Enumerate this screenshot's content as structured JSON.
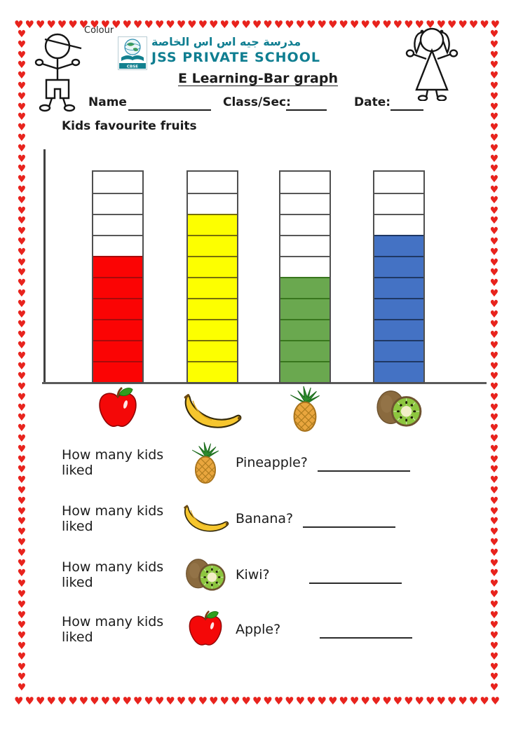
{
  "border": {
    "heart": "♥",
    "color": "#e8231d"
  },
  "header": {
    "colour_label": "Colour",
    "school_name_arabic": "مدرسة جيه اس اس الخاصة",
    "school_name_english": "JSS PRIVATE SCHOOL",
    "logo_badge": "CBSE",
    "brand_color": "#0f7e91",
    "title": "E Learning-Bar graph",
    "name_label": "Name",
    "class_label": "Class/Sec:",
    "date_label": "Date:",
    "name_value": "",
    "class_value": "",
    "date_value": ""
  },
  "chart_heading": "Kids favourite fruits",
  "chart_data": {
    "type": "bar",
    "title": "Kids favourite fruits",
    "categories": [
      "Apple",
      "Banana",
      "Pineapple",
      "Kiwi"
    ],
    "values": [
      6,
      8,
      5,
      7
    ],
    "ylim": [
      0,
      10
    ],
    "cells_per_bar": 10,
    "bar_colors": [
      "#fb0404",
      "#fdff00",
      "#6aa84f",
      "#4472c4"
    ],
    "bar_divider_colors": [
      "#a80b0b",
      "#77700a",
      "#38761d",
      "#1f3864"
    ],
    "grid_color": "#585858",
    "axis_color": "#414141",
    "legend_position": "fruit icons below each bar"
  },
  "questions": [
    {
      "prefix": "How many kids liked",
      "fruit": "Pineapple",
      "label": "Pineapple?",
      "answer": ""
    },
    {
      "prefix": "How many kids liked",
      "fruit": "Banana",
      "label": "Banana?",
      "answer": ""
    },
    {
      "prefix": "How many kids liked",
      "fruit": "Kiwi",
      "label": "Kiwi?",
      "answer": ""
    },
    {
      "prefix": "How many kids liked",
      "fruit": "Apple",
      "label": "Apple?",
      "answer": ""
    }
  ]
}
